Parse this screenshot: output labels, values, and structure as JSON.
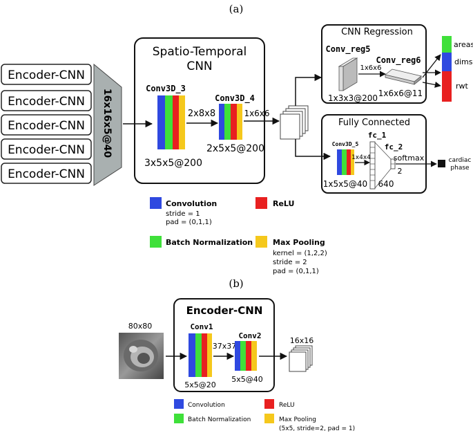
{
  "panel_a": {
    "label": "(a)",
    "encoders": [
      "Encoder-CNN",
      "Encoder-CNN",
      "Encoder-CNN",
      "Encoder-CNN",
      "Encoder-CNN"
    ],
    "stack_label": "16x16x5@40",
    "st_title_1": "Spatio-Temporal",
    "st_title_2": "CNN",
    "conv3d_3": "Conv3D_3",
    "conv3d_3_dim": "3x5x5@200",
    "arrow_2x8x8": "2x8x8",
    "conv3d_4": "Conv3D_4",
    "conv3d_4_dim": "2x5x5@200",
    "arrow_1x6x6": "1x6x6",
    "reg_title": "CNN Regression",
    "conv_reg5": "Conv_reg5",
    "conv_reg5_dim": "1x3x3@200",
    "reg_arrow": "1x6x6",
    "conv_reg6": "Conv_reg6",
    "conv_reg6_dim": "1x6x6@11",
    "outputs": [
      "areas",
      "dims",
      "rwt"
    ],
    "fc_title": "Fully Connected",
    "conv3d_5": "Conv3D_5",
    "conv3d_5_dim": "1x5x5@40",
    "fc_arrow": "1x4x4",
    "fc_1": "fc_1",
    "fc_1_dim": "640",
    "fc_2": "fc_2",
    "softmax": "softmax",
    "fc_2_dim": "2",
    "cardiac_1": "cardiac",
    "cardiac_2": "phase",
    "legend": {
      "convolution": "Convolution",
      "conv_detail_1": "stride = 1",
      "conv_detail_2": "pad = (0,1,1)",
      "relu": "ReLU",
      "batchnorm": "Batch Normalization",
      "maxpool": "Max Pooling",
      "pool_detail_1": "kernel = (1,2,2)",
      "pool_detail_2": "stride = 2",
      "pool_detail_3": "pad = (0,1,1)"
    }
  },
  "panel_b": {
    "label": "(b)",
    "title": "Encoder-CNN",
    "input_dim": "80x80",
    "conv1": "Conv1",
    "conv1_dim": "5x5@20",
    "arrow_37x37": "37x37",
    "conv2": "Conv2",
    "conv2_dim": "5x5@40",
    "output_dim": "16x16",
    "legend": {
      "convolution": "Convolution",
      "relu": "ReLU",
      "batchnorm": "Batch Normalization",
      "maxpool": "Max Pooling",
      "pool_detail": "(5x5, stride=2, pad = 1)"
    }
  },
  "colors": {
    "conv": "#2f49e0",
    "batchnorm": "#3fe03a",
    "relu": "#e82020",
    "maxpool": "#f5c81c",
    "stack": "#a9b0b0"
  }
}
